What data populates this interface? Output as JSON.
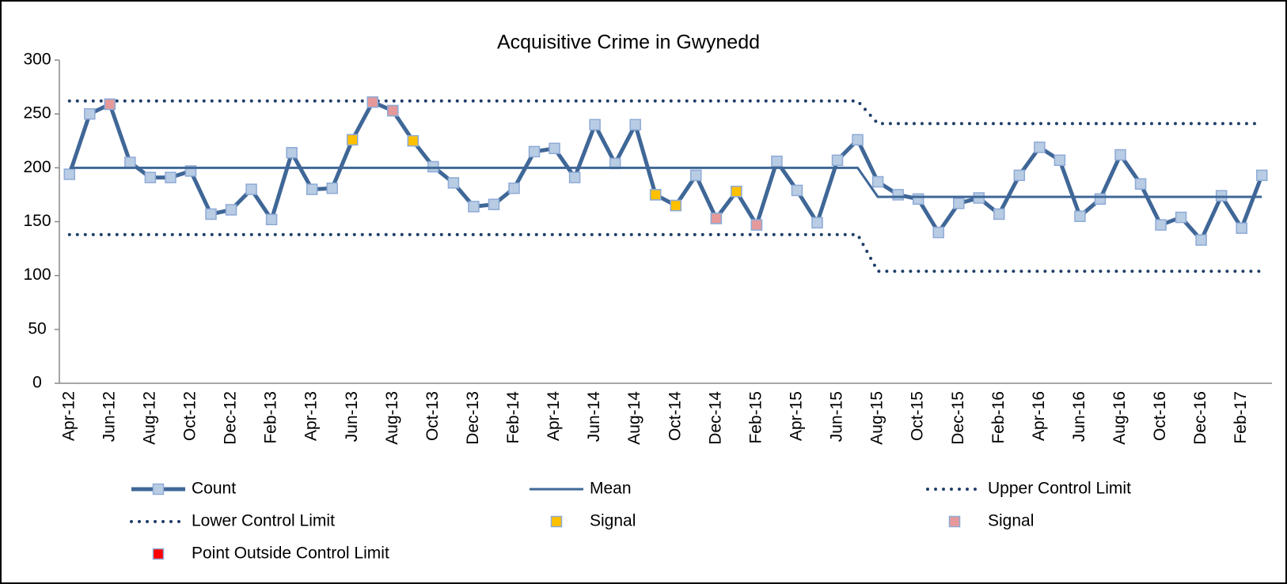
{
  "chart_data": {
    "type": "line",
    "title": "Acquisitive Crime in Gwynedd",
    "categories": [
      "Apr-12",
      null,
      "Jun-12",
      null,
      "Aug-12",
      null,
      "Oct-12",
      null,
      "Dec-12",
      null,
      "Feb-13",
      null,
      "Apr-13",
      null,
      "Jun-13",
      null,
      "Aug-13",
      null,
      "Oct-13",
      null,
      "Dec-13",
      null,
      "Feb-14",
      null,
      "Apr-14",
      null,
      "Jun-14",
      null,
      "Aug-14",
      null,
      "Oct-14",
      null,
      "Dec-14",
      null,
      "Feb-15",
      null,
      "Apr-15",
      null,
      "Jun-15",
      null,
      "Aug-15",
      null,
      "Oct-15",
      null,
      "Dec-15",
      null,
      "Feb-16",
      null,
      "Apr-16",
      null,
      "Jun-16",
      null,
      "Aug-16",
      null,
      "Oct-16",
      null,
      "Dec-16",
      null,
      "Feb-17",
      null
    ],
    "ylim": [
      0,
      300
    ],
    "yticks": [
      0,
      50,
      100,
      150,
      200,
      250,
      300
    ],
    "series": [
      {
        "name": "Count",
        "color": "#3f6797",
        "style": "line-markers",
        "values": [
          194,
          250,
          259,
          205,
          191,
          191,
          197,
          157,
          161,
          180,
          152,
          214,
          180,
          181,
          226,
          261,
          253,
          225,
          201,
          186,
          164,
          166,
          181,
          215,
          218,
          191,
          240,
          204,
          240,
          175,
          165,
          193,
          153,
          178,
          147,
          206,
          179,
          149,
          207,
          226,
          187,
          175,
          171,
          140,
          167,
          172,
          157,
          193,
          219,
          207,
          155,
          171,
          212,
          185,
          147,
          154,
          133,
          174,
          144,
          193
        ]
      },
      {
        "name": "Mean",
        "color": "#3f6797",
        "style": "line",
        "values": [
          200,
          200,
          200,
          200,
          200,
          200,
          200,
          200,
          200,
          200,
          200,
          200,
          200,
          200,
          200,
          200,
          200,
          200,
          200,
          200,
          200,
          200,
          200,
          200,
          200,
          200,
          200,
          200,
          200,
          200,
          200,
          200,
          200,
          200,
          200,
          200,
          200,
          200,
          200,
          200,
          173,
          173,
          173,
          173,
          173,
          173,
          173,
          173,
          173,
          173,
          173,
          173,
          173,
          173,
          173,
          173,
          173,
          173,
          173,
          173
        ]
      },
      {
        "name": "Upper Control Limit",
        "color": "#1f3f6a",
        "style": "dotted",
        "values": [
          262,
          262,
          262,
          262,
          262,
          262,
          262,
          262,
          262,
          262,
          262,
          262,
          262,
          262,
          262,
          262,
          262,
          262,
          262,
          262,
          262,
          262,
          262,
          262,
          262,
          262,
          262,
          262,
          262,
          262,
          262,
          262,
          262,
          262,
          262,
          262,
          262,
          262,
          262,
          262,
          241,
          241,
          241,
          241,
          241,
          241,
          241,
          241,
          241,
          241,
          241,
          241,
          241,
          241,
          241,
          241,
          241,
          241,
          241,
          241
        ]
      },
      {
        "name": "Lower Control Limit",
        "color": "#1f3f6a",
        "style": "dotted",
        "values": [
          138,
          138,
          138,
          138,
          138,
          138,
          138,
          138,
          138,
          138,
          138,
          138,
          138,
          138,
          138,
          138,
          138,
          138,
          138,
          138,
          138,
          138,
          138,
          138,
          138,
          138,
          138,
          138,
          138,
          138,
          138,
          138,
          138,
          138,
          138,
          138,
          138,
          138,
          138,
          138,
          104,
          104,
          104,
          104,
          104,
          104,
          104,
          104,
          104,
          104,
          104,
          104,
          104,
          104,
          104,
          104,
          104,
          104,
          104,
          104
        ]
      },
      {
        "name": "Signal",
        "color": "#ffc000",
        "style": "markers",
        "values": [
          null,
          null,
          null,
          null,
          null,
          null,
          null,
          null,
          null,
          null,
          null,
          null,
          null,
          null,
          226,
          null,
          null,
          225,
          null,
          null,
          null,
          null,
          null,
          null,
          null,
          null,
          null,
          null,
          null,
          175,
          165,
          null,
          null,
          178,
          null,
          null,
          null,
          null,
          null,
          null,
          null,
          null,
          null,
          null,
          null,
          null,
          null,
          null,
          null,
          null,
          null,
          null,
          null,
          null,
          null,
          null,
          null,
          null,
          null,
          null
        ]
      },
      {
        "name": "Signal",
        "color": "#e6999a",
        "style": "markers",
        "values": [
          null,
          null,
          259,
          null,
          null,
          null,
          null,
          null,
          null,
          null,
          null,
          null,
          null,
          null,
          null,
          261,
          253,
          null,
          null,
          null,
          null,
          null,
          null,
          null,
          null,
          null,
          null,
          null,
          null,
          null,
          null,
          null,
          153,
          null,
          147,
          null,
          null,
          null,
          null,
          null,
          null,
          null,
          null,
          null,
          null,
          null,
          null,
          null,
          null,
          null,
          null,
          null,
          null,
          null,
          null,
          null,
          null,
          null,
          null,
          null
        ]
      },
      {
        "name": "Point Outside Control Limit",
        "color": "#ff0000",
        "style": "markers",
        "values": [
          null,
          null,
          null,
          null,
          null,
          null,
          null,
          null,
          null,
          null,
          null,
          null,
          null,
          null,
          null,
          null,
          null,
          null,
          null,
          null,
          null,
          null,
          null,
          null,
          null,
          null,
          null,
          null,
          null,
          null,
          null,
          null,
          null,
          null,
          null,
          null,
          null,
          null,
          null,
          null,
          null,
          null,
          null,
          null,
          null,
          null,
          null,
          null,
          null,
          null,
          null,
          null,
          null,
          null,
          null,
          null,
          null,
          null,
          null,
          null
        ]
      }
    ]
  }
}
